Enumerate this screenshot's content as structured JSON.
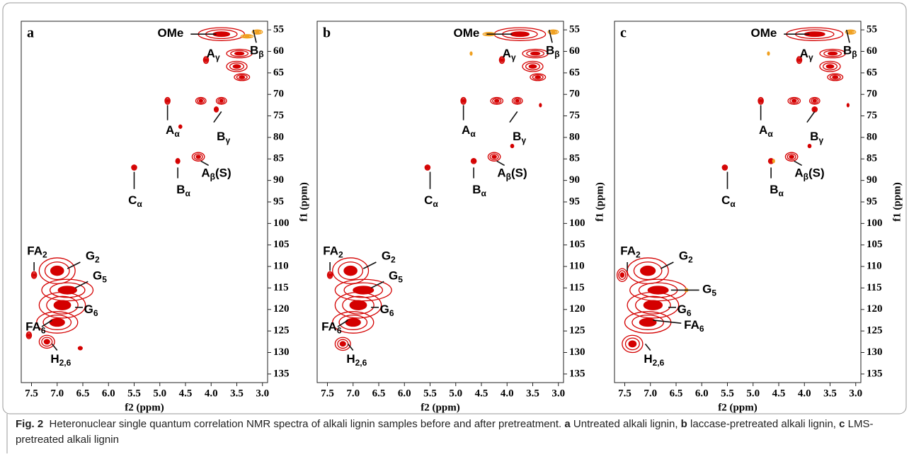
{
  "chart_data": [
    {
      "type": "contour",
      "label": "a",
      "xlabel": "f2 (ppm)",
      "ylabel": "f1 (ppm)",
      "xlim": [
        7.7,
        2.9
      ],
      "ylim": [
        53,
        137
      ],
      "xticks": [
        7.5,
        {
          "value": 7,
          "label": "7.0"
        },
        6.5,
        {
          "value": 6,
          "label": "6.0"
        },
        5.5,
        {
          "value": 5,
          "label": "5.0"
        },
        4.5,
        {
          "value": 4,
          "label": "4.0"
        },
        3.5,
        {
          "value": 3,
          "label": "3.0"
        }
      ],
      "yticks": [
        55,
        60,
        65,
        70,
        75,
        80,
        85,
        90,
        95,
        100,
        105,
        110,
        115,
        120,
        125,
        130,
        135
      ],
      "series": [
        {
          "color": "#d40000",
          "x": [
            3.8,
            3.45,
            4.1,
            3.5,
            3.4,
            4.85,
            4.2,
            3.8,
            3.9,
            4.6,
            4.25,
            4.65,
            5.5,
            7.0,
            6.8,
            6.9,
            7.0,
            7.2,
            7.45,
            7.55,
            6.55
          ],
          "y": [
            56,
            60.5,
            62,
            63.5,
            66,
            71.5,
            71.5,
            71.5,
            73.5,
            77.5,
            84.5,
            85.5,
            87,
            111,
            115.5,
            119,
            123,
            127.5,
            112,
            126,
            129
          ],
          "dx": [
            0.45,
            0.25,
            0.05,
            0.2,
            0.15,
            0.05,
            0.1,
            0.1,
            0.04,
            0.03,
            0.12,
            0.04,
            0.05,
            0.35,
            0.5,
            0.45,
            0.4,
            0.15,
            0.05,
            0.05,
            0.04
          ],
          "dy": [
            1.5,
            1,
            0.8,
            1.2,
            0.8,
            0.8,
            0.8,
            0.8,
            0.6,
            0.4,
            1,
            0.6,
            0.6,
            3,
            2.5,
            3,
            2.5,
            1.5,
            0.8,
            0.8,
            0.4
          ]
        },
        {
          "color": "#f0a020",
          "x": [
            3.1,
            3.3
          ],
          "y": [
            55.5,
            56.5
          ],
          "dx": [
            0.1,
            0.12
          ],
          "dy": [
            0.5,
            0.4
          ]
        }
      ],
      "annotations": [
        {
          "text": "OMe",
          "x": 4.79,
          "y": 56,
          "line": [
            4.4,
            56,
            3.9,
            56
          ]
        },
        {
          "text": "B",
          "sub": "β",
          "x": 3.11,
          "y": 60,
          "line": [
            3.12,
            58,
            3.18,
            55
          ]
        },
        {
          "text": "A",
          "sub": "γ",
          "x": 3.96,
          "y": 60.7
        },
        {
          "text": "A",
          "sub": "α",
          "x": 4.75,
          "y": 78.5,
          "line": [
            4.85,
            76,
            4.85,
            72.5
          ]
        },
        {
          "text": "B",
          "sub": "γ",
          "x": 3.76,
          "y": 80,
          "line": [
            3.95,
            76.5,
            3.8,
            74
          ]
        },
        {
          "text": "A",
          "sub": "β",
          "suffix": "(S)",
          "x": 3.9,
          "y": 88.5,
          "line": [
            4.05,
            86.5,
            4.2,
            85.5
          ]
        },
        {
          "text": "B",
          "sub": "α",
          "x": 4.54,
          "y": 92.4,
          "line": [
            4.65,
            89.5,
            4.65,
            87
          ]
        },
        {
          "text": "C",
          "sub": "α",
          "x": 5.48,
          "y": 94.8,
          "line": [
            5.5,
            92,
            5.5,
            88
          ]
        },
        {
          "text": "FA",
          "sub": "2",
          "x": 7.39,
          "y": 106.6,
          "line": [
            7.45,
            109,
            7.45,
            111
          ]
        },
        {
          "text": "G",
          "sub": "2",
          "x": 6.31,
          "y": 107.8,
          "line": [
            6.55,
            109,
            6.8,
            110.5
          ]
        },
        {
          "text": "G",
          "sub": "5",
          "x": 6.17,
          "y": 112.4,
          "line": [
            6.4,
            113.5,
            6.65,
            115
          ]
        },
        {
          "text": "G",
          "sub": "6",
          "x": 6.34,
          "y": 120.2,
          "line": [
            6.5,
            119.5,
            6.65,
            119.5
          ]
        },
        {
          "text": "FA",
          "sub": "6",
          "x": 7.42,
          "y": 124.2,
          "line": [
            7.3,
            124,
            7.1,
            122.5
          ]
        },
        {
          "text": "H",
          "sub": "2,6",
          "x": 6.93,
          "y": 131.7,
          "line": [
            7.0,
            129.5,
            7.1,
            128
          ]
        }
      ]
    },
    {
      "type": "contour",
      "label": "b",
      "xlabel": "f2 (ppm)",
      "ylabel": "f1 (ppm)",
      "xlim": [
        7.7,
        2.9
      ],
      "ylim": [
        53,
        137
      ],
      "xticks": [
        7.5,
        {
          "value": 7,
          "label": "7.0"
        },
        6.5,
        {
          "value": 6,
          "label": "6.0"
        },
        5.5,
        {
          "value": 5,
          "label": "5.0"
        },
        4.5,
        {
          "value": 4,
          "label": "4.0"
        },
        3.5,
        {
          "value": 3,
          "label": "3.0"
        }
      ],
      "yticks": [
        55,
        60,
        65,
        70,
        75,
        80,
        85,
        90,
        95,
        100,
        105,
        110,
        115,
        120,
        125,
        130,
        135
      ],
      "series": [
        {
          "color": "#d40000",
          "x": [
            3.75,
            3.45,
            4.1,
            3.5,
            3.4,
            4.85,
            4.2,
            3.8,
            3.35,
            4.25,
            4.65,
            5.55,
            7.05,
            6.8,
            6.9,
            7.0,
            7.2,
            7.45,
            3.9
          ],
          "y": [
            56,
            60.5,
            62,
            63.5,
            66,
            71.5,
            71.5,
            71.5,
            72.5,
            84.5,
            85.5,
            87,
            111,
            115.5,
            119,
            123,
            128,
            112,
            82
          ],
          "dx": [
            0.5,
            0.25,
            0.05,
            0.2,
            0.15,
            0.05,
            0.12,
            0.1,
            0.02,
            0.12,
            0.05,
            0.05,
            0.35,
            0.55,
            0.45,
            0.4,
            0.15,
            0.05,
            0.03
          ],
          "dy": [
            1.5,
            1,
            0.8,
            1.2,
            0.8,
            0.8,
            0.8,
            0.8,
            0.4,
            1,
            0.6,
            0.6,
            3,
            2.5,
            3,
            2.5,
            1.5,
            0.8,
            0.4
          ]
        },
        {
          "color": "#f0a020",
          "x": [
            3.1,
            4.35,
            4.7
          ],
          "y": [
            55.5,
            56,
            60.5
          ],
          "dx": [
            0.1,
            0.12,
            0.02
          ],
          "dy": [
            0.5,
            0.4,
            0.4
          ]
        }
      ],
      "annotations": [
        {
          "text": "OMe",
          "x": 4.79,
          "y": 56,
          "line": [
            4.4,
            56,
            3.9,
            56
          ]
        },
        {
          "text": "B",
          "sub": "β",
          "x": 3.11,
          "y": 60,
          "line": [
            3.12,
            58,
            3.18,
            55
          ]
        },
        {
          "text": "A",
          "sub": "γ",
          "x": 3.96,
          "y": 60.7
        },
        {
          "text": "A",
          "sub": "α",
          "x": 4.75,
          "y": 78.5,
          "line": [
            4.85,
            76,
            4.85,
            72.5
          ]
        },
        {
          "text": "B",
          "sub": "γ",
          "x": 3.76,
          "y": 80,
          "line": [
            3.95,
            76.5,
            3.8,
            74
          ]
        },
        {
          "text": "A",
          "sub": "β",
          "suffix": "(S)",
          "x": 3.9,
          "y": 88.5,
          "line": [
            4.05,
            86.5,
            4.2,
            85.5
          ]
        },
        {
          "text": "B",
          "sub": "α",
          "x": 4.54,
          "y": 92.4,
          "line": [
            4.65,
            89.5,
            4.65,
            87
          ]
        },
        {
          "text": "C",
          "sub": "α",
          "x": 5.48,
          "y": 94.8,
          "line": [
            5.5,
            92,
            5.5,
            88
          ]
        },
        {
          "text": "FA",
          "sub": "2",
          "x": 7.39,
          "y": 106.6,
          "line": [
            7.45,
            109,
            7.45,
            111
          ]
        },
        {
          "text": "G",
          "sub": "2",
          "x": 6.31,
          "y": 107.8,
          "line": [
            6.55,
            109,
            6.8,
            110.5
          ]
        },
        {
          "text": "G",
          "sub": "5",
          "x": 6.17,
          "y": 112.4,
          "line": [
            6.4,
            113.5,
            6.65,
            115
          ]
        },
        {
          "text": "G",
          "sub": "6",
          "x": 6.34,
          "y": 120.2,
          "line": [
            6.5,
            119.5,
            6.65,
            119.5
          ]
        },
        {
          "text": "FA",
          "sub": "6",
          "x": 7.42,
          "y": 124.2,
          "line": [
            7.3,
            124,
            7.1,
            122.5
          ]
        },
        {
          "text": "H",
          "sub": "2,6",
          "x": 6.93,
          "y": 131.7,
          "line": [
            7.0,
            129.5,
            7.1,
            128
          ]
        }
      ]
    },
    {
      "type": "contour",
      "label": "c",
      "xlabel": "f2 (ppm)",
      "ylabel": "f1 (ppm)",
      "xlim": [
        7.7,
        2.9
      ],
      "ylim": [
        53,
        137
      ],
      "xticks": [
        7.5,
        {
          "value": 7,
          "label": "7.0"
        },
        6.5,
        {
          "value": 6,
          "label": "6.0"
        },
        5.5,
        {
          "value": 5,
          "label": "5.0"
        },
        4.5,
        {
          "value": 4,
          "label": "4.0"
        },
        3.5,
        {
          "value": 3,
          "label": "3.0"
        }
      ],
      "yticks": [
        55,
        60,
        65,
        70,
        75,
        80,
        85,
        90,
        95,
        100,
        105,
        110,
        115,
        120,
        125,
        130,
        135
      ],
      "series": [
        {
          "color": "#d40000",
          "x": [
            3.8,
            3.45,
            4.1,
            3.5,
            3.4,
            4.85,
            4.2,
            3.8,
            3.8,
            4.25,
            4.65,
            5.55,
            7.05,
            6.85,
            6.95,
            7.05,
            7.35,
            7.55,
            3.15,
            3.9
          ],
          "y": [
            56,
            60.5,
            62,
            63.5,
            66,
            71.5,
            71.5,
            71.5,
            73.5,
            84.5,
            85.5,
            87,
            111,
            115.5,
            119,
            123,
            128,
            112,
            72.5,
            82
          ],
          "dx": [
            0.55,
            0.25,
            0.05,
            0.2,
            0.15,
            0.05,
            0.12,
            0.1,
            0.05,
            0.12,
            0.05,
            0.05,
            0.4,
            0.55,
            0.5,
            0.45,
            0.2,
            0.1,
            0.02,
            0.03
          ],
          "dy": [
            1.5,
            1,
            0.8,
            1.2,
            0.8,
            0.8,
            0.8,
            0.8,
            0.6,
            1,
            0.6,
            0.6,
            3,
            2.5,
            3,
            2.5,
            2,
            1.5,
            0.4,
            0.4
          ]
        },
        {
          "color": "#f0a020",
          "x": [
            3.1,
            4.7,
            4.6,
            6.3
          ],
          "y": [
            55.5,
            60.5,
            85.5,
            115.5
          ],
          "dx": [
            0.1,
            0.02,
            0.02,
            0.03
          ],
          "dy": [
            0.5,
            0.4,
            0.4,
            0.4
          ]
        }
      ],
      "annotations": [
        {
          "text": "OMe",
          "x": 4.79,
          "y": 56,
          "line": [
            4.4,
            56,
            3.9,
            56
          ]
        },
        {
          "text": "B",
          "sub": "β",
          "x": 3.11,
          "y": 60,
          "line": [
            3.12,
            58,
            3.18,
            55
          ]
        },
        {
          "text": "A",
          "sub": "γ",
          "x": 3.96,
          "y": 60.7
        },
        {
          "text": "A",
          "sub": "α",
          "x": 4.75,
          "y": 78.5,
          "line": [
            4.85,
            76,
            4.85,
            72.5
          ]
        },
        {
          "text": "B",
          "sub": "γ",
          "x": 3.76,
          "y": 80,
          "line": [
            3.95,
            76.5,
            3.8,
            74
          ]
        },
        {
          "text": "A",
          "sub": "β",
          "suffix": "(S)",
          "x": 3.9,
          "y": 88.5,
          "line": [
            4.05,
            86.5,
            4.2,
            85.5
          ]
        },
        {
          "text": "B",
          "sub": "α",
          "x": 4.54,
          "y": 92.4,
          "line": [
            4.65,
            89.5,
            4.65,
            87
          ]
        },
        {
          "text": "C",
          "sub": "α",
          "x": 5.48,
          "y": 94.8,
          "line": [
            5.5,
            92,
            5.5,
            88
          ]
        },
        {
          "text": "FA",
          "sub": "2",
          "x": 7.39,
          "y": 106.6,
          "line": [
            7.45,
            109,
            7.45,
            111
          ]
        },
        {
          "text": "G",
          "sub": "2",
          "x": 6.31,
          "y": 107.8,
          "line": [
            6.55,
            109,
            6.8,
            110.5
          ]
        },
        {
          "text": "G",
          "sub": "5",
          "x": 5.85,
          "y": 115.5,
          "line": [
            6.05,
            115.5,
            6.6,
            115.5
          ]
        },
        {
          "text": "G",
          "sub": "6",
          "x": 6.34,
          "y": 120.2,
          "line": [
            6.5,
            119.5,
            6.65,
            119.5
          ]
        },
        {
          "text": "FA",
          "sub": "6",
          "x": 6.15,
          "y": 123.8,
          "line": [
            6.4,
            123.2,
            6.95,
            122.5
          ]
        },
        {
          "text": "H",
          "sub": "2,6",
          "x": 6.93,
          "y": 131.7,
          "line": [
            7.0,
            129.5,
            7.1,
            128
          ]
        }
      ]
    }
  ],
  "caption": {
    "label": "Fig. 2",
    "text": "Heteronuclear single quantum correlation NMR spectra of alkali lignin samples before and after pretreatment.",
    "items": [
      {
        "key": "a",
        "text": "Untreated alkali lignin,"
      },
      {
        "key": "b",
        "text": "laccase-pretreated alkali lignin,"
      },
      {
        "key": "c",
        "text": "LMS-pretreated alkali lignin"
      }
    ]
  }
}
